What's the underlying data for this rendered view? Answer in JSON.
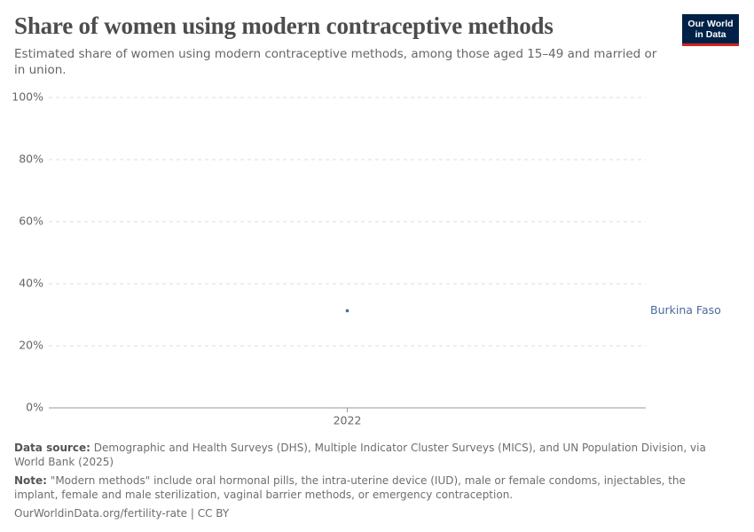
{
  "chart_data": {
    "type": "line",
    "title": "Share of women using modern contraceptive methods",
    "subtitle": "Estimated share of women using modern contraceptive methods, among those aged 15–49 and married or in union.",
    "logo": [
      "Our World",
      "in Data"
    ],
    "x": [
      2022
    ],
    "xlim": [
      2021,
      2023
    ],
    "xticks": [
      2022
    ],
    "series": [
      {
        "name": "Burkina Faso",
        "color": "#4c6a9c",
        "values": [
          31.3
        ]
      }
    ],
    "ylim": [
      0,
      100
    ],
    "yticks": [
      {
        "value": 0,
        "label": "0%"
      },
      {
        "value": 20,
        "label": "20%"
      },
      {
        "value": 40,
        "label": "40%"
      },
      {
        "value": 60,
        "label": "60%"
      },
      {
        "value": 80,
        "label": "80%"
      },
      {
        "value": 100,
        "label": "100%"
      }
    ],
    "grid": true,
    "source_label": "Data source:",
    "source": "Demographic and Health Surveys (DHS), Multiple Indicator Cluster Surveys (MICS), and UN Population Division, via World Bank (2025)",
    "note_label": "Note:",
    "note": "\"Modern methods\" include oral hormonal pills, the intra-uterine device (IUD), male or female condoms, injectables, the implant, female and male sterilization, vaginal barrier methods, or emergency contraception.",
    "url": "OurWorldinData.org/fertility-rate | CC BY"
  }
}
